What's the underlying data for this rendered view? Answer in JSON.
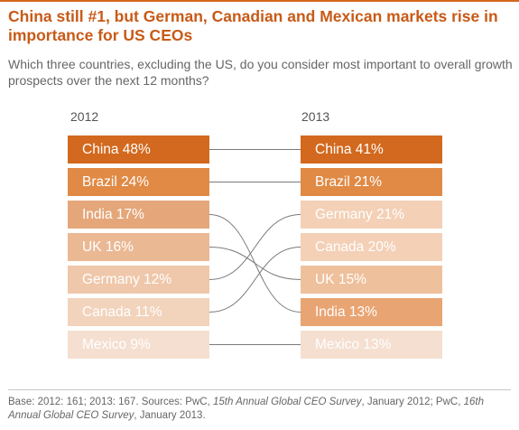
{
  "chart_data": {
    "type": "table",
    "title": "China still #1, but German, Canadian and Mexican markets rise in importance for US CEOs",
    "subtitle": "Which three countries, excluding the US, do you consider most important to overall growth prospects over the next 12 months?",
    "years": [
      "2012",
      "2013"
    ],
    "rankings": {
      "2012": [
        {
          "country": "China",
          "value": 48,
          "label": "China 48%"
        },
        {
          "country": "Brazil",
          "value": 24,
          "label": "Brazil 24%"
        },
        {
          "country": "India",
          "value": 17,
          "label": "India 17%"
        },
        {
          "country": "UK",
          "value": 16,
          "label": "UK 16%"
        },
        {
          "country": "Germany",
          "value": 12,
          "label": "Germany 12%"
        },
        {
          "country": "Canada",
          "value": 11,
          "label": "Canada 11%"
        },
        {
          "country": "Mexico",
          "value": 9,
          "label": "Mexico 9%"
        }
      ],
      "2013": [
        {
          "country": "China",
          "value": 41,
          "label": "China 41%"
        },
        {
          "country": "Brazil",
          "value": 21,
          "label": "Brazil 21%"
        },
        {
          "country": "Germany",
          "value": 21,
          "label": "Germany 21%"
        },
        {
          "country": "Canada",
          "value": 20,
          "label": "Canada 20%"
        },
        {
          "country": "UK",
          "value": 15,
          "label": "UK 15%"
        },
        {
          "country": "India",
          "value": 13,
          "label": "India 13%"
        },
        {
          "country": "Mexico",
          "value": 13,
          "label": "Mexico 13%"
        }
      ]
    },
    "links": [
      {
        "country": "China",
        "from_rank": 1,
        "to_rank": 1
      },
      {
        "country": "Brazil",
        "from_rank": 2,
        "to_rank": 2
      },
      {
        "country": "India",
        "from_rank": 3,
        "to_rank": 6
      },
      {
        "country": "UK",
        "from_rank": 4,
        "to_rank": 5
      },
      {
        "country": "Germany",
        "from_rank": 5,
        "to_rank": 3
      },
      {
        "country": "Canada",
        "from_rank": 6,
        "to_rank": 4
      },
      {
        "country": "Mexico",
        "from_rank": 7,
        "to_rank": 7
      }
    ],
    "colors": {
      "rank_1": "#d2691e",
      "rank_2": "#e08a45",
      "2012_rank_3": "#e5a77a",
      "2012_rank_4": "#ebb894",
      "2012_rank_5": "#efc7aa",
      "2012_rank_6": "#f2d3bc",
      "rank_7": "#f5dfd0",
      "2013_rank_3": "#f3d0b6",
      "2013_rank_4": "#f3d0b6",
      "2013_rank_5": "#efc09c",
      "2013_rank_6": "#e8a472",
      "title": "#c85a17",
      "connector": "#7a7a7a"
    }
  },
  "footer": {
    "prefix": "Base: 2012: 161; 2013: 167. Sources: PwC, ",
    "source1": "15th Annual Global CEO Survey",
    "middle": ", January 2012; PwC, ",
    "source2": "16th Annual Global CEO Survey",
    "suffix": ", January 2013."
  }
}
